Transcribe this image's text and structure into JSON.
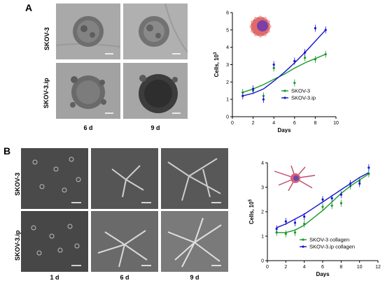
{
  "figure": {
    "panel_a_label": "A",
    "panel_b_label": "B",
    "a_row_labels": [
      "SKOV-3",
      "SKOV-3.ip"
    ],
    "a_col_labels": [
      "6 d",
      "9 d"
    ],
    "b_row_labels": [
      "SKOV-3",
      "SKOV-3.ip"
    ],
    "b_col_labels": [
      "1 d",
      "6 d",
      "9 d"
    ]
  },
  "chart_data": [
    {
      "type": "line",
      "panel": "A",
      "xlabel": "Days",
      "ylabel": "Cells, 10",
      "ylabel_sup": "3",
      "xlim": [
        0,
        10
      ],
      "ylim": [
        0,
        6
      ],
      "xticks": [
        0,
        2,
        4,
        6,
        8,
        10
      ],
      "yticks": [
        0,
        1,
        2,
        3,
        4,
        5,
        6
      ],
      "legend_position": "bottom-right",
      "series": [
        {
          "name": "SKOV-3",
          "color": "#1a9a2a",
          "points": [
            [
              1,
              1.4
            ],
            [
              2,
              1.5
            ],
            [
              3,
              1.2
            ],
            [
              4,
              2.8
            ],
            [
              6,
              1.95
            ],
            [
              7,
              3.4
            ],
            [
              8,
              3.3
            ],
            [
              9,
              3.6
            ]
          ],
          "fit": [
            [
              1,
              1.4
            ],
            [
              2,
              1.6
            ],
            [
              3,
              1.85
            ],
            [
              4,
              2.15
            ],
            [
              5,
              2.45
            ],
            [
              6,
              2.8
            ],
            [
              7,
              3.1
            ],
            [
              8,
              3.35
            ],
            [
              9,
              3.6
            ]
          ]
        },
        {
          "name": "SKOV-3.ip",
          "color": "#1414d0",
          "points": [
            [
              1,
              1.2
            ],
            [
              2,
              1.6
            ],
            [
              3,
              1.0
            ],
            [
              4,
              3.0
            ],
            [
              6,
              3.2
            ],
            [
              7,
              3.7
            ],
            [
              8,
              5.1
            ],
            [
              9,
              5.0
            ]
          ],
          "fit": [
            [
              1,
              1.2
            ],
            [
              2,
              1.35
            ],
            [
              3,
              1.6
            ],
            [
              4,
              2.05
            ],
            [
              5,
              2.55
            ],
            [
              6,
              3.1
            ],
            [
              7,
              3.7
            ],
            [
              8,
              4.35
            ],
            [
              9,
              5.0
            ]
          ]
        }
      ]
    },
    {
      "type": "line",
      "panel": "B",
      "xlabel": "Days",
      "ylabel": "Cells, 10",
      "ylabel_sup": "5",
      "xlim": [
        0,
        12
      ],
      "ylim": [
        0,
        4
      ],
      "xticks": [
        0,
        2,
        4,
        6,
        8,
        10,
        12
      ],
      "yticks": [
        0,
        1,
        2,
        3,
        4
      ],
      "legend_position": "bottom-right",
      "series": [
        {
          "name": "SKOV-3 collagen",
          "color": "#1a9a2a",
          "points": [
            [
              1,
              1.15
            ],
            [
              2,
              1.1
            ],
            [
              3,
              1.15
            ],
            [
              4,
              1.5
            ],
            [
              6,
              2.2
            ],
            [
              7,
              2.25
            ],
            [
              8,
              2.35
            ],
            [
              9,
              3.05
            ],
            [
              10,
              3.25
            ],
            [
              11,
              3.55
            ]
          ],
          "fit": [
            [
              1,
              1.15
            ],
            [
              2,
              1.15
            ],
            [
              3,
              1.25
            ],
            [
              4,
              1.45
            ],
            [
              5,
              1.75
            ],
            [
              6,
              2.05
            ],
            [
              7,
              2.4
            ],
            [
              8,
              2.75
            ],
            [
              9,
              3.05
            ],
            [
              10,
              3.3
            ],
            [
              11,
              3.55
            ]
          ]
        },
        {
          "name": "SKOV-3.ip collagen",
          "color": "#1414d0",
          "points": [
            [
              1,
              1.3
            ],
            [
              2,
              1.6
            ],
            [
              3,
              1.55
            ],
            [
              4,
              1.8
            ],
            [
              6,
              2.5
            ],
            [
              7,
              2.55
            ],
            [
              8,
              2.7
            ],
            [
              9,
              3.15
            ],
            [
              10,
              3.15
            ],
            [
              11,
              3.8
            ]
          ],
          "fit": [
            [
              1,
              1.35
            ],
            [
              2,
              1.5
            ],
            [
              3,
              1.7
            ],
            [
              4,
              1.9
            ],
            [
              5,
              2.15
            ],
            [
              6,
              2.4
            ],
            [
              7,
              2.65
            ],
            [
              8,
              2.9
            ],
            [
              9,
              3.15
            ],
            [
              10,
              3.4
            ],
            [
              11,
              3.6
            ]
          ]
        }
      ]
    }
  ]
}
